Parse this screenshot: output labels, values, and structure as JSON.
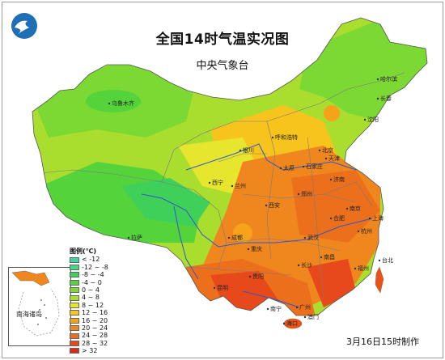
{
  "title": "全国14时气温实况图",
  "subtitle": "中央气象台",
  "footer": "3月16日15时制作",
  "inset_label": "南海诸岛",
  "legend": {
    "title": "图例(℃)",
    "items": [
      {
        "label": "< -12",
        "color": "#3fd59e"
      },
      {
        "label": "-12 ~ -8",
        "color": "#45d787"
      },
      {
        "label": "-8 ~ -4",
        "color": "#3fd05a"
      },
      {
        "label": "-4 ~ 0",
        "color": "#54d43a"
      },
      {
        "label": "0 ~ 4",
        "color": "#7cd832"
      },
      {
        "label": "4 ~ 8",
        "color": "#a9de2f"
      },
      {
        "label": "8 ~ 12",
        "color": "#e7e62e"
      },
      {
        "label": "12 ~ 16",
        "color": "#f6c41c"
      },
      {
        "label": "16 ~ 20",
        "color": "#f6a21a"
      },
      {
        "label": "20 ~ 24",
        "color": "#f0871e"
      },
      {
        "label": "24 ~ 28",
        "color": "#ec6f1c"
      },
      {
        "label": "28 ~ 32",
        "color": "#e8491a"
      },
      {
        "label": "> 32",
        "color": "#e02616"
      }
    ]
  },
  "cities": [
    "乌鲁木齐",
    "拉萨",
    "西宁",
    "兰州",
    "银川",
    "呼和浩特",
    "北京",
    "天津",
    "石家庄",
    "太原",
    "济南",
    "郑州",
    "西安",
    "成都",
    "重庆",
    "贵阳",
    "昆明",
    "南宁",
    "广州",
    "海口",
    "长沙",
    "南昌",
    "武汉",
    "合肥",
    "南京",
    "上海",
    "杭州",
    "福州",
    "台北",
    "沈阳",
    "长春",
    "哈尔滨",
    "澳门"
  ],
  "colors": {
    "ocean": "#ffffff",
    "province_border": "#7a7a7a",
    "river": "#2f58c8",
    "country_border": "#555555"
  }
}
